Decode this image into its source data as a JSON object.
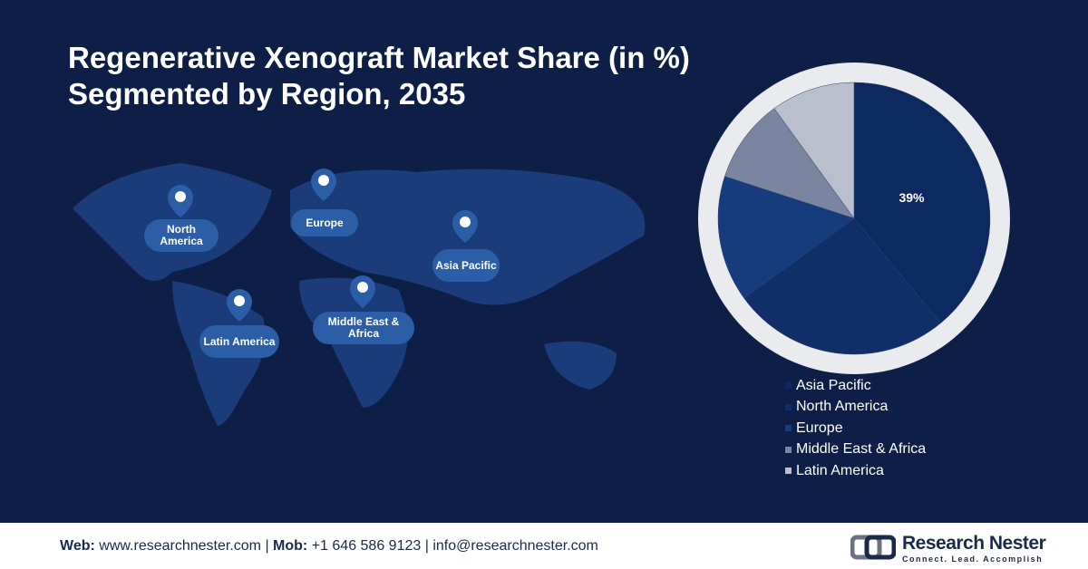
{
  "chart_data": {
    "type": "pie",
    "title": "Regenerative Xenograft Market Share (in %) Segmented by Region, 2035",
    "categories": [
      "Asia Pacific",
      "North America",
      "Europe",
      "Middle East & Africa",
      "Latin America"
    ],
    "values": [
      39,
      26,
      15,
      10,
      10
    ],
    "value_labels": [
      "39%",
      null,
      null,
      null,
      null
    ],
    "colors": [
      "#0c2a5f",
      "#102f69",
      "#163c7d",
      "#7a859f",
      "#b9bfcc"
    ]
  },
  "map_labels": [
    "North America",
    "Europe",
    "Asia Pacific",
    "Latin America",
    "Middle East & Africa"
  ],
  "footer": {
    "web_label": "Web:",
    "web": "www.researchnester.com",
    "mob_label": "Mob:",
    "mob": "+1 646 586 9123",
    "email": "info@researchnester.com"
  },
  "logo": {
    "name": "Research Nester",
    "tagline": "Connect. Lead. Accomplish"
  }
}
